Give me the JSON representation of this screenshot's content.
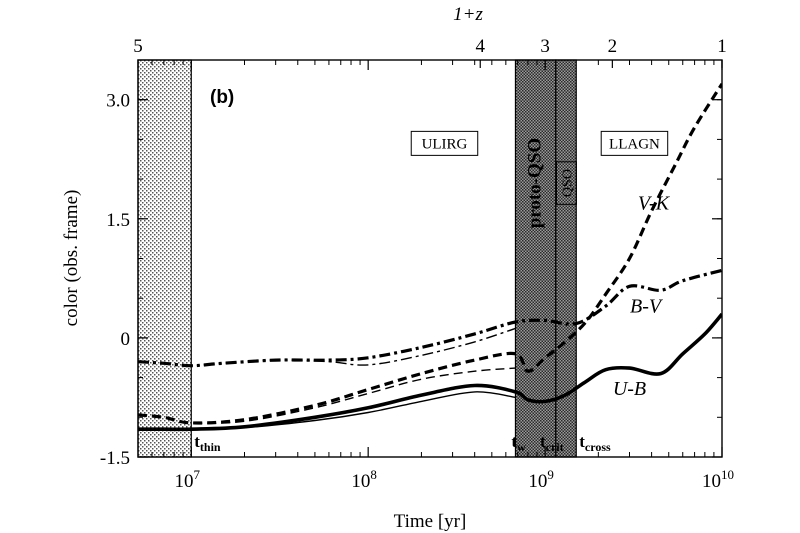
{
  "chart_data": {
    "type": "line",
    "panel_label": "(b)",
    "xlabel": "Time [yr]",
    "ylabel": "color (obs. frame)",
    "top_axis_label": "1+z",
    "xscale": "log",
    "xlim": [
      5000000,
      10000000000
    ],
    "ylim": [
      -1.5,
      3.5
    ],
    "x_ticks": [
      {
        "value": 10000000,
        "base": "10",
        "exp": "7"
      },
      {
        "value": 100000000,
        "base": "10",
        "exp": "8"
      },
      {
        "value": 1000000000,
        "base": "10",
        "exp": "9"
      },
      {
        "value": 10000000000,
        "base": "10",
        "exp": "10"
      }
    ],
    "y_ticks": [
      {
        "value": 3.0,
        "label": "3.0"
      },
      {
        "value": 1.5,
        "label": "1.5"
      },
      {
        "value": 0,
        "label": "0"
      },
      {
        "value": -1.5,
        "label": "-1.5"
      }
    ],
    "top_ticks": [
      {
        "time": 5000000,
        "label": "5"
      },
      {
        "time": 430000000,
        "label": "4"
      },
      {
        "time": 1000000000,
        "label": "3"
      },
      {
        "time": 2400000000,
        "label": "2"
      },
      {
        "time": 10000000000,
        "label": "1"
      }
    ],
    "shaded_regions": [
      {
        "name": "thin",
        "x_start": 5000000,
        "x_end": 10000000,
        "pattern": "dots"
      },
      {
        "name": "proto-qso",
        "x_start": 680000000,
        "x_end": 1150000000,
        "pattern": "dense"
      },
      {
        "name": "qso",
        "x_start": 1150000000,
        "x_end": 1500000000,
        "pattern": "dense"
      }
    ],
    "phase_labels": [
      {
        "text": "ULIRG",
        "time": 270000000,
        "y": 2.45,
        "boxed": true,
        "vertical": false
      },
      {
        "text": "LLAGN",
        "time": 3200000000,
        "y": 2.45,
        "boxed": true,
        "vertical": false
      },
      {
        "text": "proto-QSO",
        "time": 880000000,
        "y": 1.95,
        "boxed": false,
        "vertical": true
      },
      {
        "text": "QSO",
        "time": 1320000000,
        "y": 1.95,
        "boxed": true,
        "vertical": true
      }
    ],
    "time_markers": [
      {
        "text": "t",
        "sub": "thin",
        "time": 10000000
      },
      {
        "text": "t",
        "sub": "w",
        "time": 620000000
      },
      {
        "text": "t",
        "sub": "crit",
        "time": 900000000
      },
      {
        "text": "t",
        "sub": "cross",
        "time": 1500000000
      }
    ],
    "series_labels": [
      {
        "text": "V-K",
        "time": 4100000000,
        "y": 1.62
      },
      {
        "text": "B-V",
        "time": 3700000000,
        "y": 0.32
      },
      {
        "text": "U-B",
        "time": 3000000000,
        "y": -0.72
      }
    ],
    "series": [
      {
        "key": "vk-thick",
        "style": "dashed",
        "width": 3.2,
        "x": [
          5000000,
          7000000,
          10000000,
          20000000,
          50000000,
          100000000,
          200000000,
          400000000,
          680000000,
          800000000,
          1000000000,
          1300000000,
          1700000000,
          2200000000,
          3000000000,
          4000000000,
          5500000000,
          7000000000,
          10000000000
        ],
        "y": [
          -0.97,
          -1.0,
          -1.07,
          -1.03,
          -0.85,
          -0.65,
          -0.45,
          -0.28,
          -0.2,
          -0.42,
          -0.25,
          -0.05,
          0.2,
          0.55,
          1.0,
          1.6,
          2.2,
          2.65,
          3.2
        ]
      },
      {
        "key": "vk-thin",
        "style": "dashed",
        "width": 1.4,
        "x": [
          5000000,
          7000000,
          10000000,
          20000000,
          50000000,
          100000000,
          200000000,
          400000000,
          680000000
        ],
        "y": [
          -0.97,
          -1.0,
          -1.07,
          -1.05,
          -0.88,
          -0.7,
          -0.52,
          -0.42,
          -0.38
        ]
      },
      {
        "key": "bv-thick",
        "style": "dashdot",
        "width": 3.2,
        "x": [
          5000000,
          7000000,
          10000000,
          15000000,
          30000000,
          60000000,
          100000000,
          200000000,
          400000000,
          680000000,
          1000000000,
          1500000000,
          2200000000,
          3000000000,
          4500000000,
          6000000000,
          10000000000
        ],
        "y": [
          -0.3,
          -0.32,
          -0.35,
          -0.32,
          -0.28,
          -0.28,
          -0.25,
          -0.12,
          0.05,
          0.2,
          0.22,
          0.18,
          0.4,
          0.65,
          0.6,
          0.72,
          0.85
        ]
      },
      {
        "key": "bv-thin",
        "style": "dashdot",
        "width": 1.4,
        "x": [
          5000000,
          7000000,
          10000000,
          15000000,
          30000000,
          60000000,
          100000000,
          200000000,
          400000000,
          680000000
        ],
        "y": [
          -0.3,
          -0.32,
          -0.35,
          -0.32,
          -0.28,
          -0.3,
          -0.34,
          -0.22,
          -0.05,
          0.12
        ]
      },
      {
        "key": "ub-thick",
        "style": "solid",
        "width": 3.6,
        "x": [
          5000000,
          7000000,
          10000000,
          20000000,
          50000000,
          100000000,
          200000000,
          400000000,
          680000000,
          800000000,
          1000000000,
          1300000000,
          1700000000,
          2200000000,
          3000000000,
          4500000000,
          6000000000,
          8000000000,
          10000000000
        ],
        "y": [
          -1.15,
          -1.15,
          -1.15,
          -1.12,
          -1.0,
          -0.88,
          -0.72,
          -0.6,
          -0.68,
          -0.78,
          -0.8,
          -0.72,
          -0.55,
          -0.4,
          -0.38,
          -0.45,
          -0.2,
          0.05,
          0.3
        ]
      },
      {
        "key": "ub-thin",
        "style": "solid",
        "width": 1.4,
        "x": [
          5000000,
          7000000,
          10000000,
          20000000,
          50000000,
          100000000,
          200000000,
          400000000,
          680000000
        ],
        "y": [
          -1.15,
          -1.15,
          -1.15,
          -1.13,
          -1.04,
          -0.94,
          -0.8,
          -0.68,
          -0.75
        ]
      }
    ]
  }
}
